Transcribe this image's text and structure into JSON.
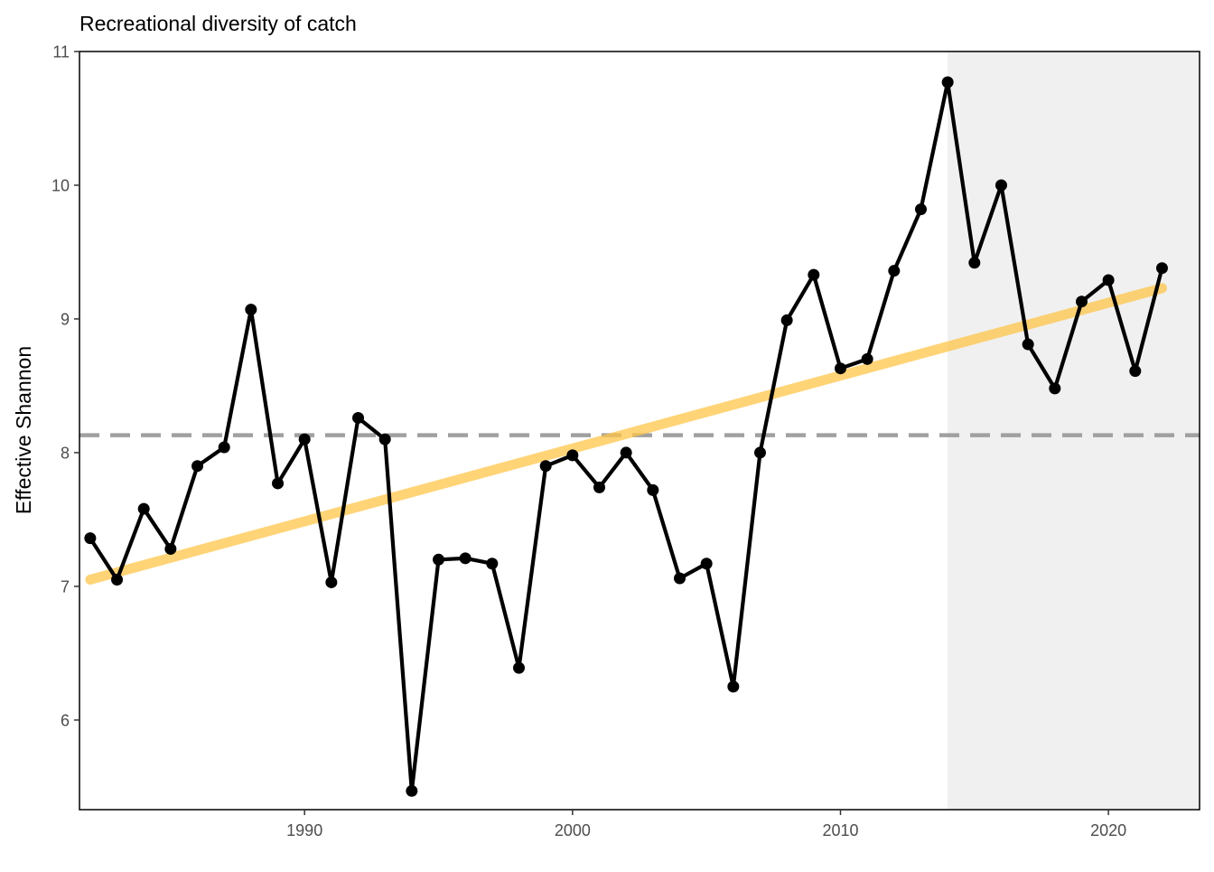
{
  "chart_data": {
    "type": "line",
    "title": "Recreational diversity of catch",
    "xlabel": "",
    "ylabel": "Effective Shannon",
    "xlim": [
      1981.6,
      2023.4
    ],
    "ylim": [
      5.33,
      11.0
    ],
    "x_ticks": [
      1990,
      2000,
      2010,
      2020
    ],
    "y_ticks": [
      6,
      7,
      8,
      9,
      10,
      11
    ],
    "grid": false,
    "legend": "none",
    "x": [
      1982,
      1983,
      1984,
      1985,
      1986,
      1987,
      1988,
      1989,
      1990,
      1991,
      1992,
      1993,
      1994,
      1995,
      1996,
      1997,
      1998,
      1999,
      2000,
      2001,
      2002,
      2003,
      2004,
      2005,
      2006,
      2007,
      2008,
      2009,
      2010,
      2011,
      2012,
      2013,
      2014,
      2015,
      2016,
      2017,
      2018,
      2019,
      2020,
      2021,
      2022
    ],
    "series": [
      {
        "values": [
          7.36,
          7.05,
          7.58,
          7.28,
          7.9,
          8.04,
          9.07,
          7.77,
          8.1,
          7.03,
          8.26,
          8.1,
          5.47,
          7.2,
          7.21,
          7.17,
          6.39,
          7.9,
          7.98,
          7.74,
          8.0,
          7.72,
          7.06,
          7.17,
          6.25,
          8.0,
          8.99,
          9.33,
          8.63,
          8.7,
          9.36,
          9.82,
          10.77,
          9.42,
          10.0,
          8.81,
          8.48,
          9.13,
          9.29,
          8.61,
          9.38
        ],
        "color": "#000000"
      }
    ],
    "trend_line": {
      "x": [
        1982,
        2022
      ],
      "y": [
        7.05,
        9.23
      ],
      "color": "#ffc64a"
    },
    "mean_line": {
      "y": 8.13,
      "color": "#a0a0a0",
      "style": "dashed"
    },
    "shaded_region": {
      "x_from": 2014,
      "x_to": 2023.4,
      "color": "#f0f0f0"
    }
  }
}
